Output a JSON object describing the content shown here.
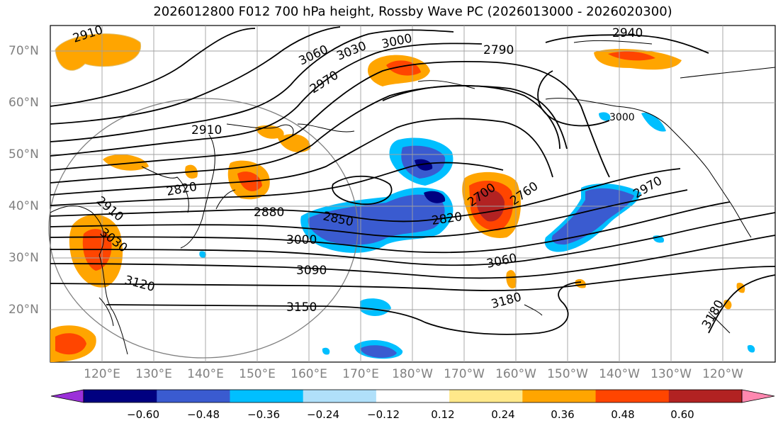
{
  "title": "2026012800 F012 700 hPa height, Rossby Wave PC (2026013000 - 2026020300)",
  "lat_labels": [
    "70°N",
    "60°N",
    "50°N",
    "40°N",
    "30°N",
    "20°N"
  ],
  "lon_labels": [
    "120°E",
    "130°E",
    "140°E",
    "150°E",
    "160°E",
    "170°E",
    "180°W",
    "170°W",
    "160°W",
    "150°W",
    "140°W",
    "130°W",
    "120°W"
  ],
  "contour_labels": [
    "2910",
    "3060",
    "3030",
    "3000",
    "2970",
    "2940",
    "2790",
    "2910",
    "2820",
    "2880",
    "2850",
    "2820",
    "2700",
    "2760",
    "2970",
    "2910",
    "3030",
    "3000",
    "3090",
    "3060",
    "3120",
    "3150",
    "3180",
    "3180",
    "3000"
  ],
  "colorbar": {
    "ticks": [
      "−0.60",
      "−0.48",
      "−0.36",
      "−0.24",
      "−0.12",
      "0.12",
      "0.24",
      "0.36",
      "0.48",
      "0.60"
    ],
    "colors": [
      "#9b30d9",
      "#000080",
      "#3a5bd0",
      "#00bfff",
      "#b0e0fa",
      "#ffffff",
      "#ffe88a",
      "#ffa500",
      "#ff4500",
      "#b22222",
      "#ff88b0"
    ]
  },
  "colors": {
    "contour": "#000000",
    "coast": "#000000",
    "grid": "#a0a0a0",
    "label_gray": "#808080"
  }
}
